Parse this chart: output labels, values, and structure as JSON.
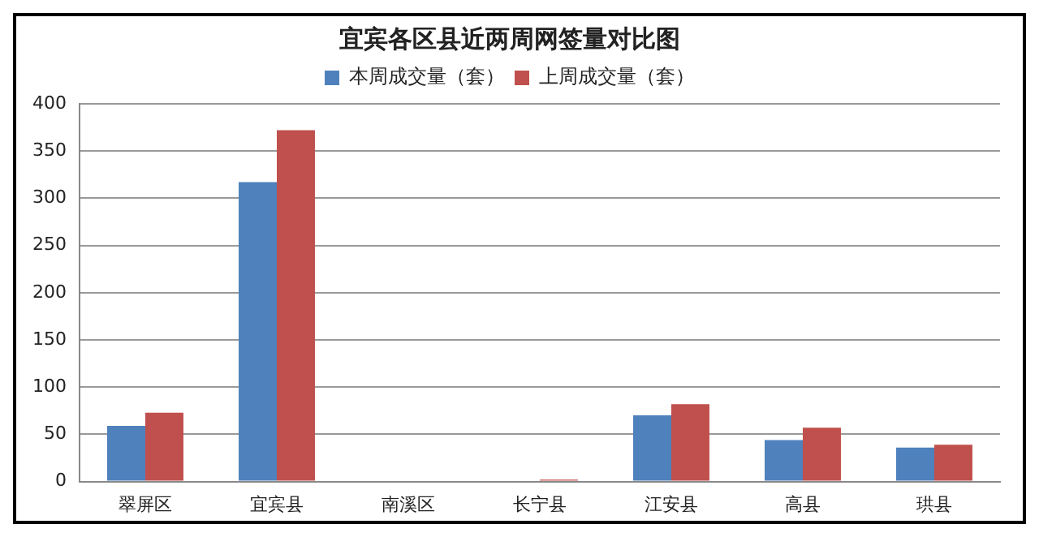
{
  "chart_data": {
    "type": "bar",
    "title": "宜宾各区县近两周网签量对比图",
    "categories": [
      "翠屏区",
      "宜宾县",
      "南溪区",
      "长宁县",
      "江安县",
      "高县",
      "珙县"
    ],
    "series": [
      {
        "name": "本周成交量（套）",
        "color": "#4f81bd",
        "values": [
          59,
          317,
          0,
          0,
          70,
          44,
          36
        ]
      },
      {
        "name": "上周成交量（套）",
        "color": "#c0504d",
        "values": [
          73,
          372,
          0,
          2,
          82,
          57,
          39
        ]
      }
    ],
    "ylim": [
      0,
      400
    ],
    "yticks": [
      0,
      50,
      100,
      150,
      200,
      250,
      300,
      350,
      400
    ],
    "grid": "y",
    "legend": "top"
  }
}
